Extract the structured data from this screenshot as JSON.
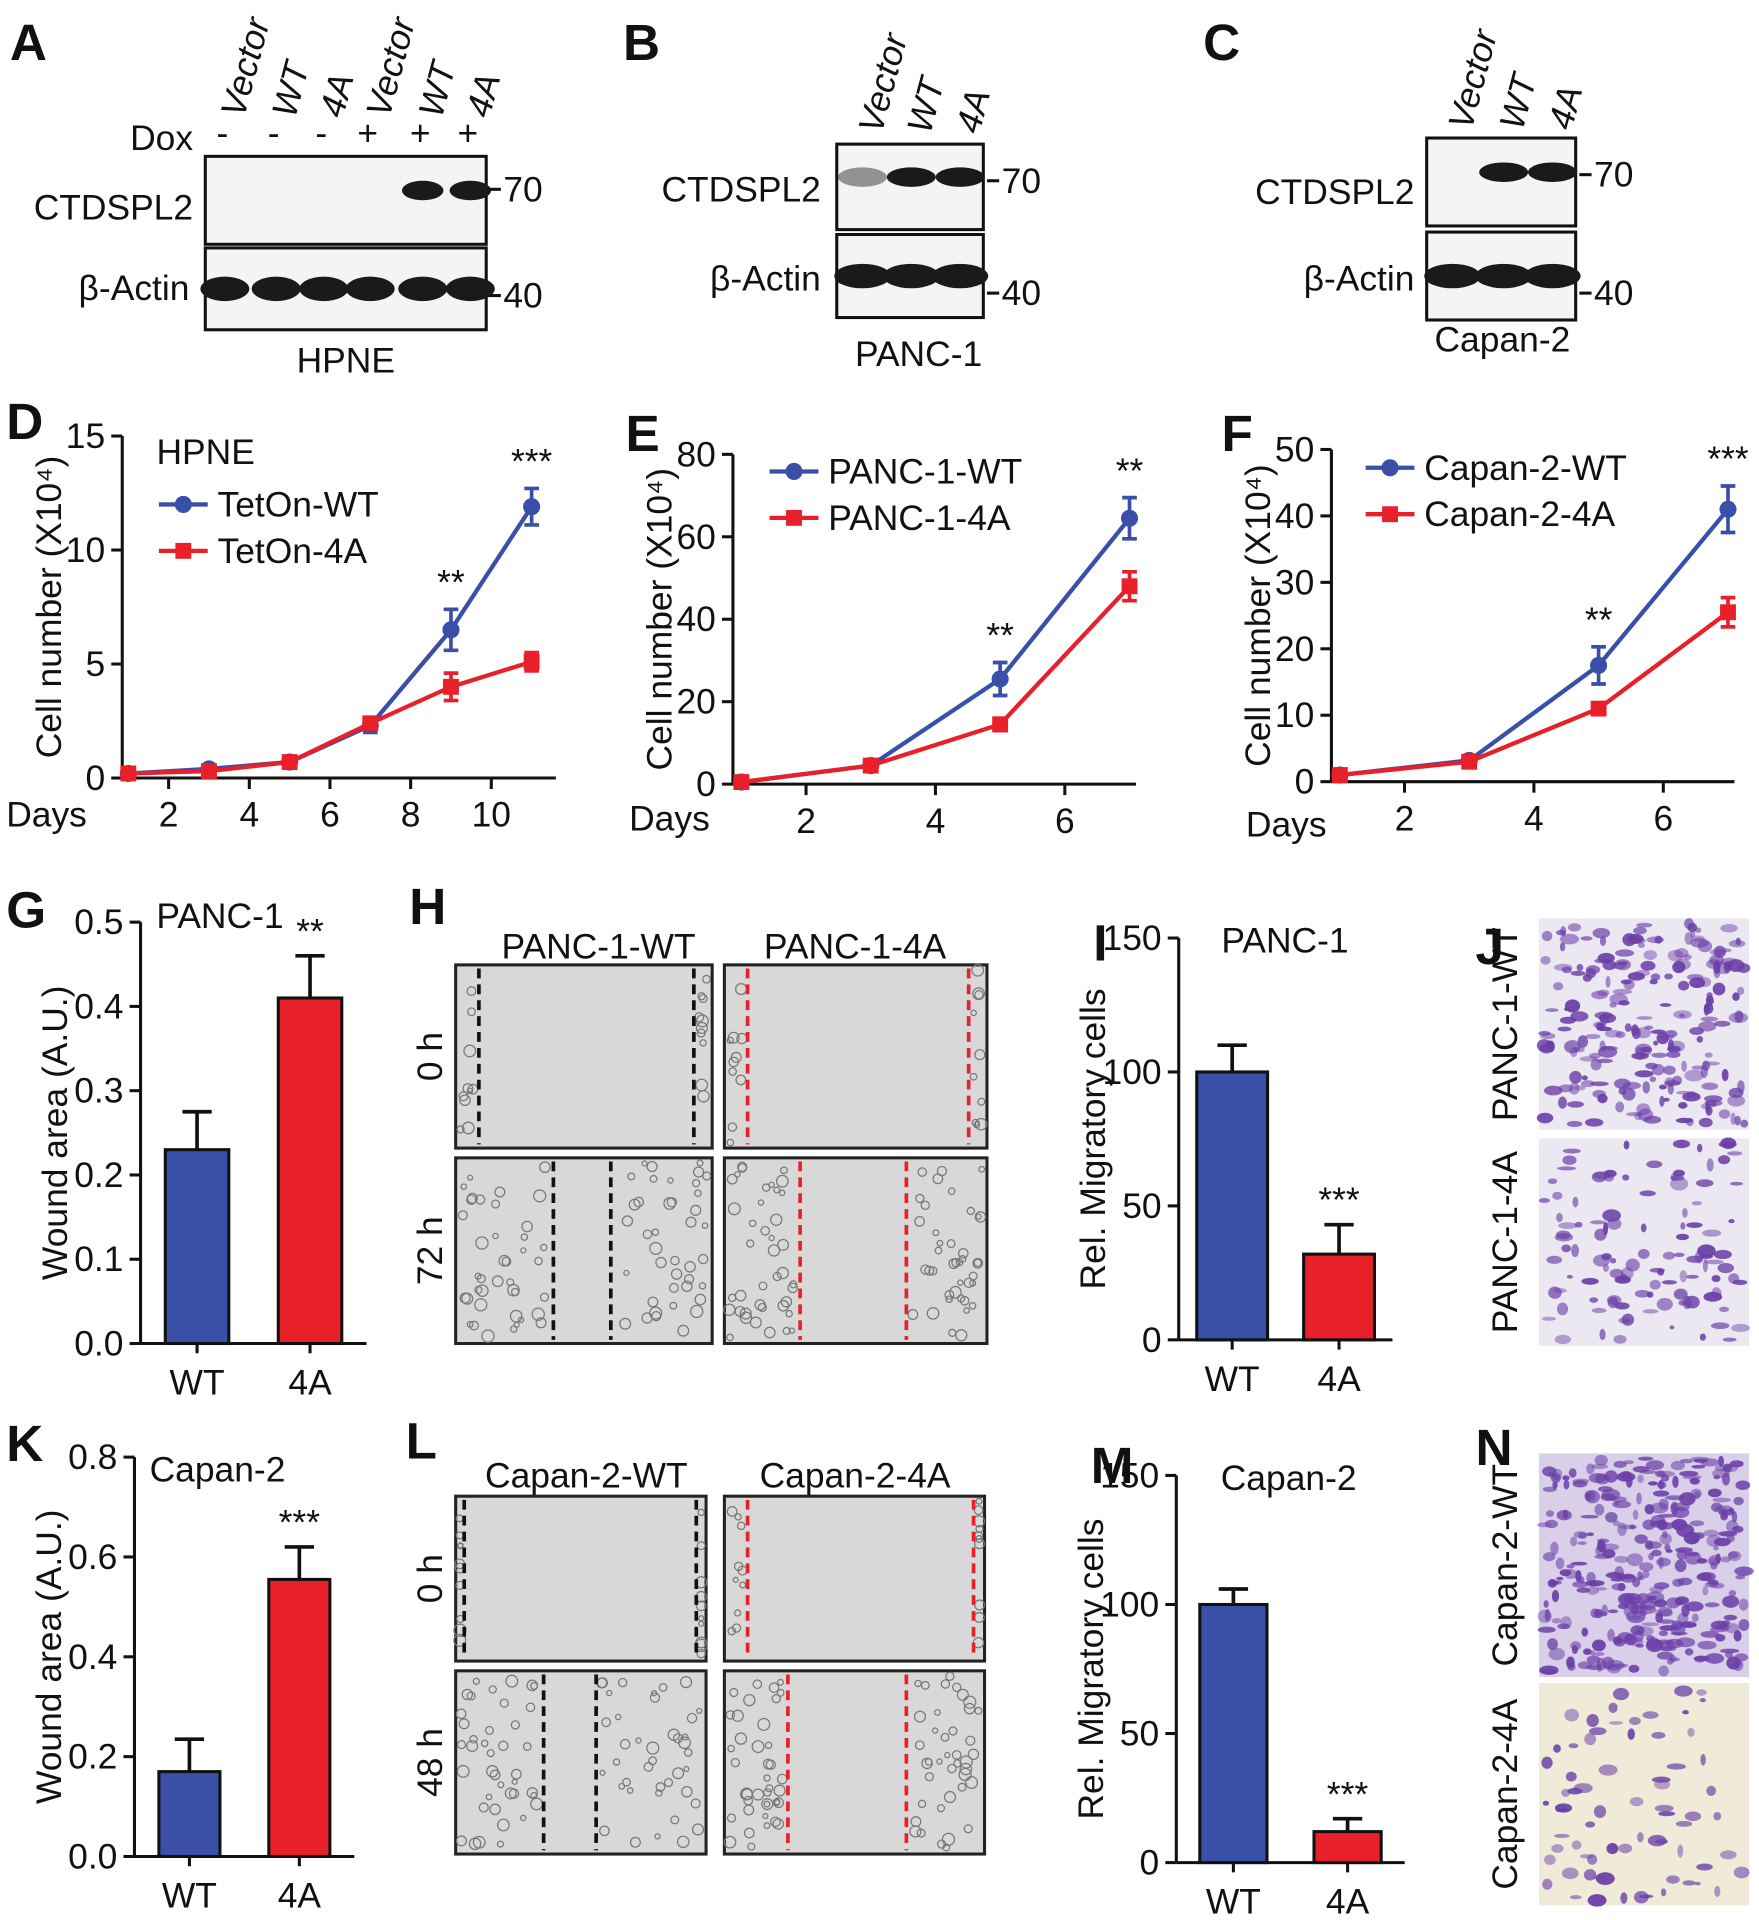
{
  "chart_data": [
    {
      "type": "line",
      "panel": "D",
      "title": "HPNE",
      "y_label": "Cell number (X10⁴)",
      "x_label": "Days",
      "x": [
        1,
        3,
        5,
        7,
        9,
        11
      ],
      "xlim": [
        0.85,
        11.6
      ],
      "xticks": [
        2,
        4,
        6,
        8,
        10
      ],
      "ylim": [
        0,
        15
      ],
      "yticks": [
        0,
        5,
        10,
        15
      ],
      "series": [
        {
          "name": "TetOn-WT",
          "color": "#3a4fa8",
          "marker": "circle",
          "values": [
            0.2,
            0.4,
            0.7,
            2.3,
            6.5,
            11.9
          ],
          "errors": [
            0.1,
            0.1,
            0.1,
            0.3,
            0.9,
            0.8
          ]
        },
        {
          "name": "TetOn-4A",
          "color": "#e8202a",
          "marker": "square",
          "values": [
            0.2,
            0.3,
            0.7,
            2.4,
            4.0,
            5.1
          ],
          "errors": [
            0.1,
            0.1,
            0.1,
            0.2,
            0.6,
            0.4
          ]
        }
      ],
      "annotations": [
        null,
        null,
        null,
        null,
        "**",
        "***"
      ]
    },
    {
      "type": "line",
      "panel": "E",
      "y_label": "Cell number (X10⁴)",
      "x_label": "Days",
      "x": [
        1,
        3,
        5,
        7
      ],
      "xlim": [
        0.87,
        7.1
      ],
      "xticks": [
        2,
        4,
        6
      ],
      "ylim": [
        0,
        80
      ],
      "yticks": [
        0,
        20,
        40,
        60,
        80
      ],
      "series": [
        {
          "name": "PANC-1-WT",
          "color": "#3a4fa8",
          "marker": "circle",
          "values": [
            0.5,
            4.5,
            25.5,
            64.5
          ],
          "errors": [
            0.5,
            0.8,
            4,
            5
          ]
        },
        {
          "name": "PANC-1-4A",
          "color": "#e8202a",
          "marker": "square",
          "values": [
            0.5,
            4.5,
            14.5,
            48
          ],
          "errors": [
            0.3,
            0.6,
            1.5,
            3.5
          ]
        }
      ],
      "annotations": [
        null,
        null,
        "**",
        "**"
      ]
    },
    {
      "type": "line",
      "panel": "F",
      "y_label": "Cell number (X10⁴)",
      "x_label": "Days",
      "x": [
        1,
        3,
        5,
        7
      ],
      "xlim": [
        0.87,
        7.1
      ],
      "xticks": [
        2,
        4,
        6
      ],
      "ylim": [
        0,
        50
      ],
      "yticks": [
        0,
        10,
        20,
        30,
        40,
        50
      ],
      "series": [
        {
          "name": "Capan-2-WT",
          "color": "#3a4fa8",
          "marker": "circle",
          "values": [
            1,
            3.2,
            17.5,
            41
          ],
          "errors": [
            0.5,
            0.5,
            2.8,
            3.5
          ]
        },
        {
          "name": "Capan-2-4A",
          "color": "#e8202a",
          "marker": "square",
          "values": [
            1,
            3,
            11,
            25.5
          ],
          "errors": [
            0.3,
            0.4,
            0.7,
            2.2
          ]
        }
      ],
      "annotations": [
        null,
        null,
        "**",
        "***"
      ]
    },
    {
      "type": "bar",
      "panel": "G",
      "title": "PANC-1",
      "y_label": "Wound area (A.U.)",
      "categories": [
        "WT",
        "4A"
      ],
      "values": [
        0.23,
        0.41
      ],
      "errors": [
        0.045,
        0.05
      ],
      "colors": [
        "#3a4fa8",
        "#e8202a"
      ],
      "annotations": [
        null,
        "**"
      ],
      "ylim": [
        0,
        0.5
      ],
      "yticks": [
        {
          "value": 0,
          "label": "0.0"
        },
        0.1,
        0.2,
        0.3,
        0.4,
        0.5
      ]
    },
    {
      "type": "bar",
      "panel": "I",
      "title": "PANC-1",
      "y_label": "Rel. Migratory cells",
      "categories": [
        "WT",
        "4A"
      ],
      "values": [
        100,
        32
      ],
      "errors": [
        10,
        11
      ],
      "colors": [
        "#3a4fa8",
        "#e8202a"
      ],
      "annotations": [
        null,
        "***"
      ],
      "ylim": [
        0,
        150
      ],
      "yticks": [
        0,
        50,
        100,
        150
      ]
    },
    {
      "type": "bar",
      "panel": "K",
      "title": "Capan-2",
      "y_label": "Wound area (A.U.)",
      "categories": [
        "WT",
        "4A"
      ],
      "values": [
        0.17,
        0.555
      ],
      "errors": [
        0.065,
        0.065
      ],
      "colors": [
        "#3a4fa8",
        "#e8202a"
      ],
      "annotations": [
        null,
        "***"
      ],
      "ylim": [
        0,
        0.8
      ],
      "yticks": [
        {
          "value": 0,
          "label": "0.0"
        },
        0.2,
        0.4,
        0.6,
        0.8
      ]
    },
    {
      "type": "bar",
      "panel": "M",
      "title": "Capan-2",
      "y_label": "Rel. Migratory cells",
      "categories": [
        "WT",
        "4A"
      ],
      "values": [
        100,
        12
      ],
      "errors": [
        6,
        5
      ],
      "colors": [
        "#3a4fa8",
        "#e8202a"
      ],
      "annotations": [
        null,
        "***"
      ],
      "ylim": [
        0,
        150
      ],
      "yticks": [
        0,
        50,
        100,
        150
      ]
    }
  ],
  "blots": [
    {
      "panel": "A",
      "lanes": [
        "Vector",
        "WT",
        "4A",
        "Vector",
        "WT",
        "4A"
      ],
      "dox_label": "Dox",
      "dox": [
        "-",
        "-",
        "-",
        "+",
        "+",
        "+"
      ],
      "rows": [
        "CTDSPL2",
        "β-Actin"
      ],
      "markers": [
        "70",
        "40"
      ],
      "cell_line": "HPNE"
    },
    {
      "panel": "B",
      "lanes": [
        "Vector",
        "WT",
        "4A"
      ],
      "rows": [
        "CTDSPL2",
        "β-Actin"
      ],
      "markers": [
        "70",
        "40"
      ],
      "cell_line": "PANC-1"
    },
    {
      "panel": "C",
      "lanes": [
        "Vector",
        "WT",
        "4A"
      ],
      "rows": [
        "CTDSPL2",
        "β-Actin"
      ],
      "markers": [
        "70",
        "40"
      ],
      "cell_line": "Capan-2"
    }
  ],
  "micrographs": [
    {
      "panel": "H",
      "columns": [
        "PANC-1-WT",
        "PANC-1-4A"
      ],
      "rows": [
        "0 h",
        "72 h"
      ]
    },
    {
      "panel": "L",
      "columns": [
        "Capan-2-WT",
        "Capan-2-4A"
      ],
      "rows": [
        "0 h",
        "48 h"
      ]
    },
    {
      "panel": "J",
      "labels": [
        "PANC-1-WT",
        "PANC-1-4A"
      ]
    },
    {
      "panel": "N",
      "labels": [
        "Capan-2-WT",
        "Capan-2-4A"
      ]
    }
  ]
}
